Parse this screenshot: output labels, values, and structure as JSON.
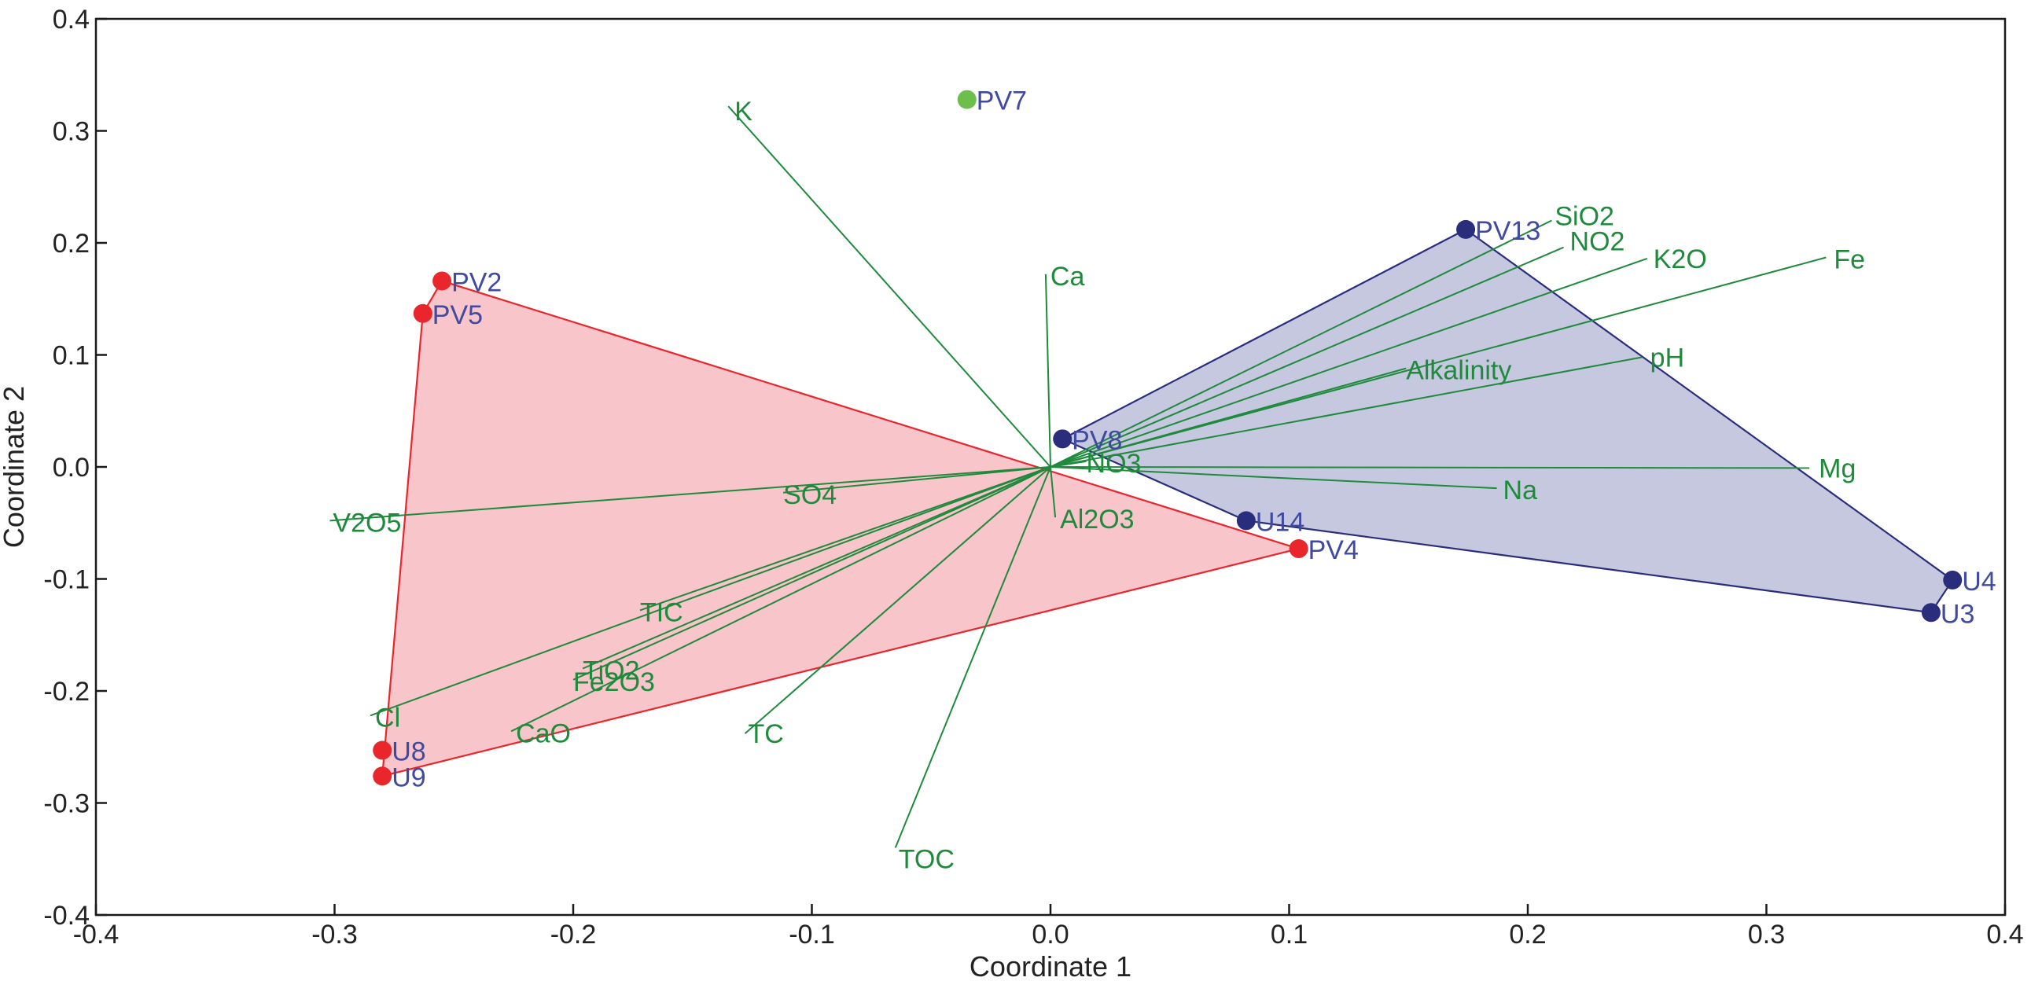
{
  "chart_data": {
    "type": "biplot",
    "title": "",
    "xlabel": "Coordinate 1",
    "ylabel": "Coordinate 2",
    "xlim": [
      -0.4,
      0.4
    ],
    "ylim": [
      -0.4,
      0.4
    ],
    "xticks": [
      -0.4,
      -0.3,
      -0.2,
      -0.1,
      0.0,
      0.1,
      0.2,
      0.3,
      0.4
    ],
    "yticks": [
      -0.4,
      -0.3,
      -0.2,
      -0.1,
      0.0,
      0.1,
      0.2,
      0.3,
      0.4
    ],
    "xtick_labels": [
      "-0.4",
      "-0.3",
      "-0.2",
      "-0.1",
      "0.0",
      "0.1",
      "0.2",
      "0.3",
      "0.4"
    ],
    "ytick_labels": [
      "-0.4",
      "-0.3",
      "-0.2",
      "-0.1",
      "0.0",
      "0.1",
      "0.2",
      "0.3",
      "0.4"
    ],
    "grid": false,
    "colors": {
      "red_group": "#e8262c",
      "red_fill": "#f7c5ca",
      "blue_group": "#2a2d7c",
      "blue_fill": "#c6c8e0",
      "outlier": "#6cbf4a",
      "sample_text": "#3f4aa0",
      "loading": "#1f8a3c"
    },
    "groups": [
      {
        "name": "red",
        "points": [
          {
            "label": "PV2",
            "x": -0.255,
            "y": 0.166
          },
          {
            "label": "PV5",
            "x": -0.263,
            "y": 0.137
          },
          {
            "label": "U8",
            "x": -0.28,
            "y": -0.253
          },
          {
            "label": "U9",
            "x": -0.28,
            "y": -0.276
          },
          {
            "label": "PV4",
            "x": 0.104,
            "y": -0.073
          }
        ],
        "hull": [
          "PV2",
          "PV4",
          "U9",
          "PV5"
        ]
      },
      {
        "name": "blue",
        "points": [
          {
            "label": "PV13",
            "x": 0.174,
            "y": 0.212
          },
          {
            "label": "PV8",
            "x": 0.005,
            "y": 0.025
          },
          {
            "label": "U14",
            "x": 0.082,
            "y": -0.048
          },
          {
            "label": "U4",
            "x": 0.378,
            "y": -0.101
          },
          {
            "label": "U3",
            "x": 0.369,
            "y": -0.13
          }
        ],
        "hull": [
          "PV13",
          "U4",
          "U3",
          "U14",
          "PV8"
        ]
      },
      {
        "name": "outlier",
        "points": [
          {
            "label": "PV7",
            "x": -0.035,
            "y": 0.328
          }
        ]
      }
    ],
    "loadings": [
      {
        "name": "K",
        "x": -0.135,
        "y": 0.322
      },
      {
        "name": "Ca",
        "x": -0.002,
        "y": 0.172
      },
      {
        "name": "SiO2",
        "x": 0.21,
        "y": 0.22
      },
      {
        "name": "NO2",
        "x": 0.215,
        "y": 0.196
      },
      {
        "name": "K2O",
        "x": 0.25,
        "y": 0.186
      },
      {
        "name": "Fe",
        "x": 0.325,
        "y": 0.187
      },
      {
        "name": "Alkalinity",
        "x": 0.149,
        "y": 0.088
      },
      {
        "name": "pH",
        "x": 0.248,
        "y": 0.098
      },
      {
        "name": "NO3",
        "x": 0.015,
        "y": 0.005
      },
      {
        "name": "Mg",
        "x": 0.318,
        "y": -0.001
      },
      {
        "name": "Na",
        "x": 0.187,
        "y": -0.019
      },
      {
        "name": "Al2O3",
        "x": 0.002,
        "y": -0.045
      },
      {
        "name": "SO4",
        "x": -0.112,
        "y": -0.023
      },
      {
        "name": "V2O5",
        "x": -0.302,
        "y": -0.048
      },
      {
        "name": "TIC",
        "x": -0.172,
        "y": -0.128
      },
      {
        "name": "TiO2",
        "x": -0.196,
        "y": -0.18
      },
      {
        "name": "Fe2O3",
        "x": -0.2,
        "y": -0.19
      },
      {
        "name": "Cl",
        "x": -0.285,
        "y": -0.222
      },
      {
        "name": "CaO",
        "x": -0.226,
        "y": -0.236
      },
      {
        "name": "TC",
        "x": -0.128,
        "y": -0.238
      },
      {
        "name": "TOC",
        "x": -0.065,
        "y": -0.34
      }
    ]
  }
}
